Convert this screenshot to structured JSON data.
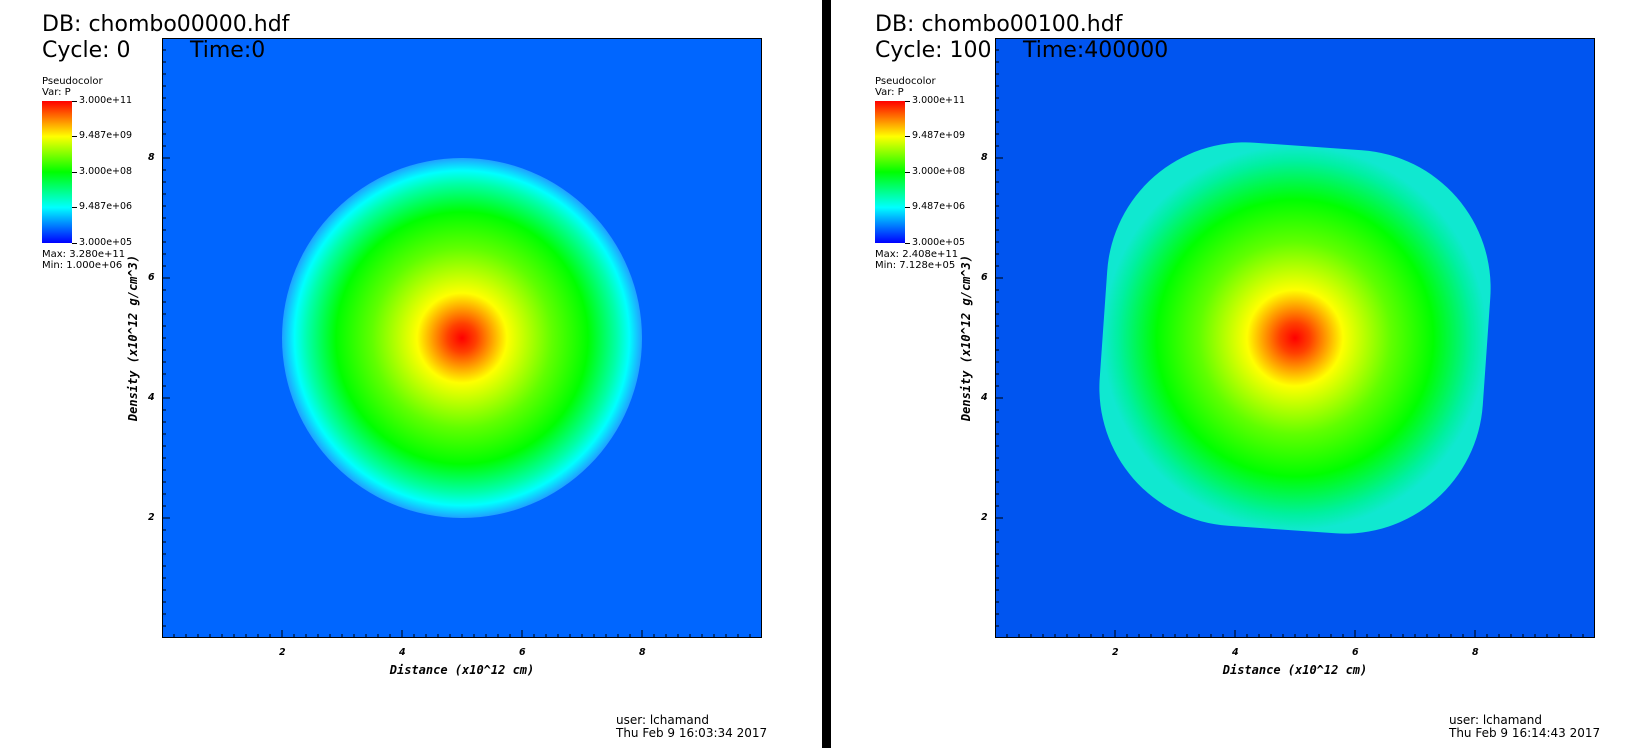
{
  "chart_data": [
    {
      "type": "heatmap",
      "db": "DB: chombo00000.hdf",
      "cycle": "Cycle: 0",
      "time": "Time:0",
      "legend": {
        "type_label": "Pseudocolor",
        "var_label": "Var: P",
        "ticks": [
          "3.000e+11",
          "9.487e+09",
          "3.000e+08",
          "9.487e+06",
          "3.000e+05"
        ],
        "max_label": "Max:  3.280e+11",
        "min_label": "Min:  1.000e+06",
        "colormap": [
          "#ff0000",
          "#ffff00",
          "#00ff00",
          "#00ffff",
          "#0000ff"
        ]
      },
      "xlabel": "Distance (x10^12 cm)",
      "ylabel": "Density (x10^12 g/cm^3)",
      "xlim": [
        0,
        10
      ],
      "ylim": [
        0,
        10
      ],
      "xticks": [
        "2",
        "4",
        "6",
        "8"
      ],
      "yticks": [
        "2",
        "4",
        "6",
        "8"
      ],
      "background_color": "#0066ff",
      "feature": {
        "center": [
          5,
          5
        ],
        "radius": 3.0,
        "shape": "circle"
      },
      "user": "user: lchamand",
      "date": "Thu Feb  9 16:03:34 2017"
    },
    {
      "type": "heatmap",
      "db": "DB: chombo00100.hdf",
      "cycle": "Cycle: 100",
      "time": "Time:400000",
      "legend": {
        "type_label": "Pseudocolor",
        "var_label": "Var: P",
        "ticks": [
          "3.000e+11",
          "9.487e+09",
          "3.000e+08",
          "9.487e+06",
          "3.000e+05"
        ],
        "max_label": "Max:  2.408e+11",
        "min_label": "Min:  7.128e+05",
        "colormap": [
          "#ff0000",
          "#ffff00",
          "#00ff00",
          "#00ffff",
          "#0000ff"
        ]
      },
      "xlabel": "Distance (x10^12 cm)",
      "ylabel": "Density (x10^12 g/cm^3)",
      "xlim": [
        0,
        10
      ],
      "ylim": [
        0,
        10
      ],
      "xticks": [
        "2",
        "4",
        "6",
        "8"
      ],
      "yticks": [
        "2",
        "4",
        "6",
        "8"
      ],
      "background_color": "#0055f0",
      "feature": {
        "center": [
          5,
          5
        ],
        "radius": 3.2,
        "shape": "rounded-square"
      },
      "user": "user: lchamand",
      "date": "Thu Feb  9 16:14:43 2017"
    }
  ]
}
